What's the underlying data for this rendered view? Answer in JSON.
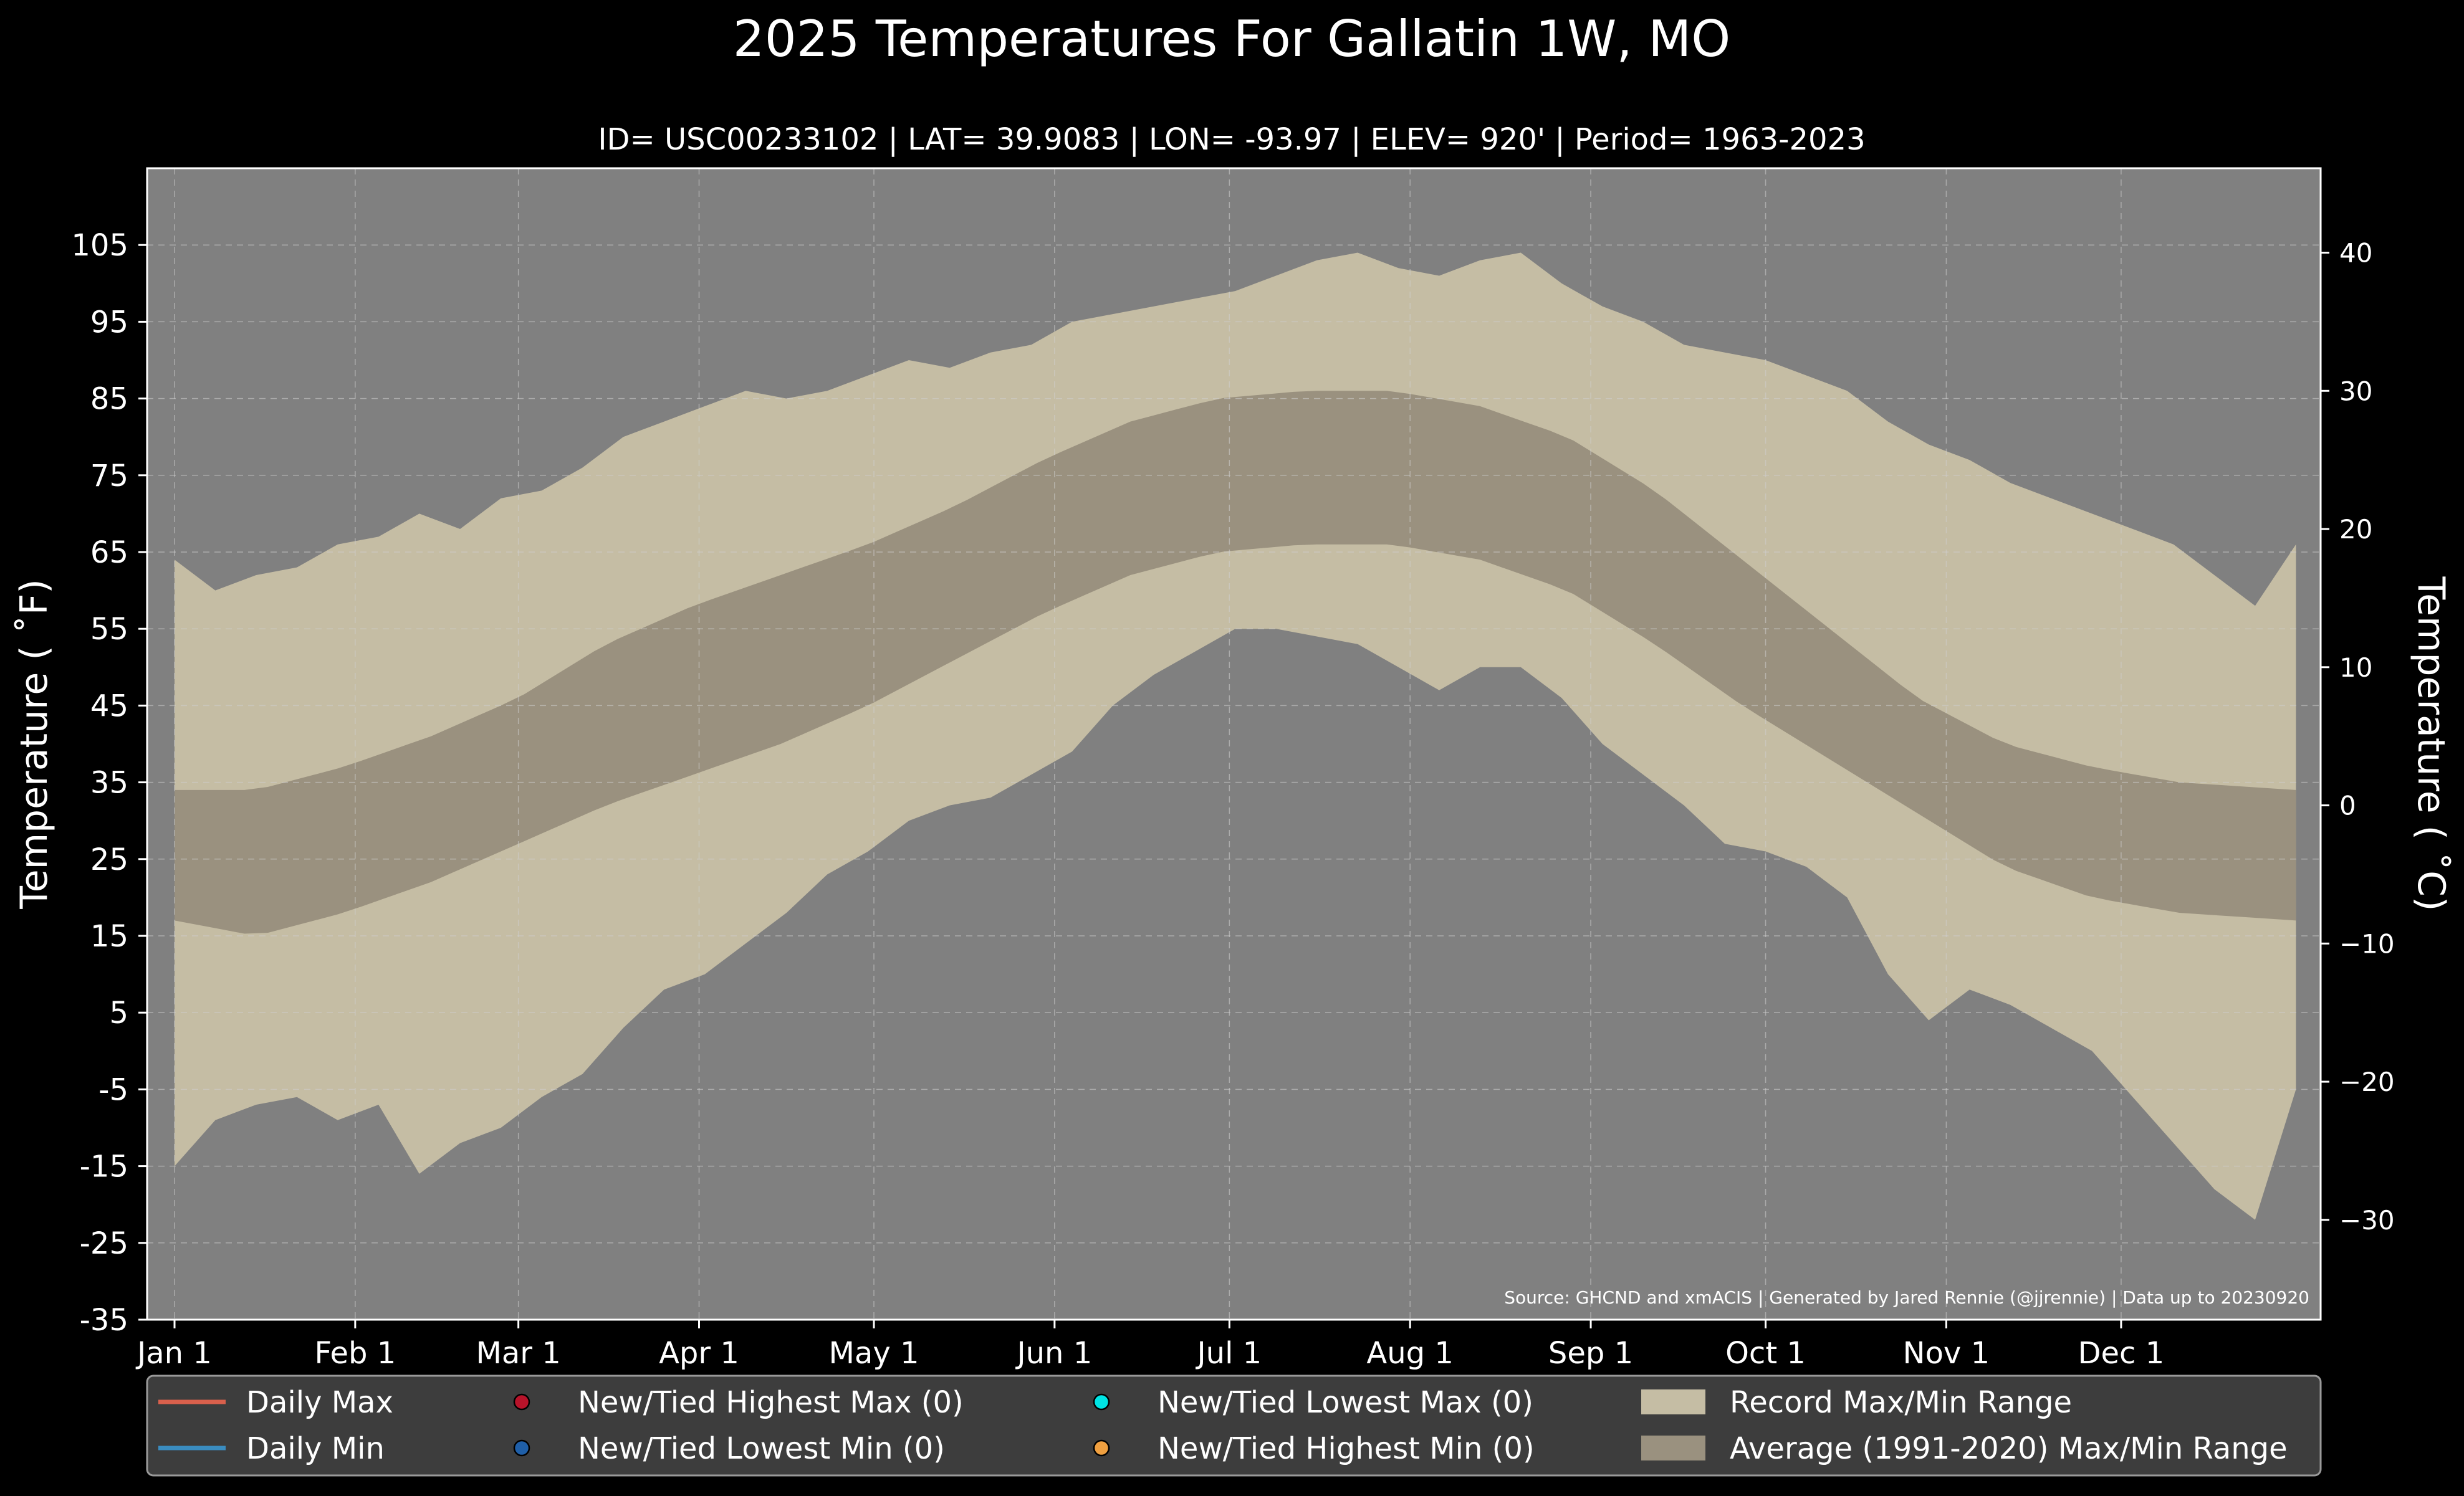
{
  "chart_data": {
    "type": "bar",
    "title": "2025 Temperatures For Gallatin 1W, MO",
    "subtitle": "ID= USC00233102 | LAT= 39.9083 | LON= -93.97 | ELEV= 920' | Period= 1963-2023",
    "ylabel": "Temperature ( $^\\circ$F)",
    "ylabel_display": "Temperature ( ˚F)",
    "ylabel_right_display": "Temperature ( ˚C)",
    "ylim": [
      -35,
      115
    ],
    "y_ticks": [
      "105",
      "95",
      "85",
      "75",
      "65",
      "55",
      "45",
      "35",
      "25",
      "15",
      "5",
      "-5",
      "-15",
      "-25",
      "-35"
    ],
    "y_ticks_right": [
      "40",
      "30",
      "20",
      "10",
      "0",
      "−10",
      "−20",
      "−30"
    ],
    "x_ticks": [
      "Jan 1",
      "Feb 1",
      "Mar 1",
      "Apr 1",
      "May 1",
      "Jun 1",
      "Jul 1",
      "Aug 1",
      "Sep 1",
      "Oct 1",
      "Nov 1",
      "Dec 1"
    ],
    "grid": true,
    "legend_position": "bottom",
    "source_note": "Source: GHCND and xmACIS | Generated by Jared Rennie (@jjrennie) | Data up to 20230920",
    "legend": [
      {
        "label": "Daily Max",
        "kind": "line",
        "color": "#d9604c"
      },
      {
        "label": "Daily Min",
        "kind": "line",
        "color": "#3a8cc0"
      },
      {
        "label": "New/Tied Highest Max (0)",
        "kind": "dot",
        "color": "#b8132a"
      },
      {
        "label": "New/Tied Lowest Min (0)",
        "kind": "dot",
        "color": "#1f5fa8"
      },
      {
        "label": "New/Tied Lowest Max (0)",
        "kind": "dot",
        "color": "#00e5e5"
      },
      {
        "label": "New/Tied Highest Min (0)",
        "kind": "dot",
        "color": "#f0a040"
      },
      {
        "label": "Record Max/Min Range",
        "kind": "patch",
        "color": "#c5bda4"
      },
      {
        "label": "Average (1991-2020) Max/Min Range",
        "kind": "patch",
        "color": "#9a917f"
      }
    ],
    "colors": {
      "record_range": "#c5bda4",
      "normal_range": "#9a917f",
      "plot_bg": "#808080",
      "figure_bg": "#000000"
    },
    "record_range": {
      "name": "Record Max/Min Range",
      "x_day_of_year": [
        1,
        8,
        15,
        22,
        29,
        36,
        43,
        50,
        57,
        64,
        71,
        78,
        85,
        92,
        99,
        106,
        113,
        120,
        127,
        134,
        141,
        148,
        155,
        162,
        169,
        176,
        183,
        190,
        197,
        204,
        211,
        218,
        225,
        232,
        239,
        246,
        253,
        260,
        267,
        274,
        281,
        288,
        295,
        302,
        309,
        316,
        323,
        330,
        337,
        344,
        351,
        358,
        365
      ],
      "max": [
        64,
        60,
        62,
        63,
        66,
        67,
        70,
        68,
        72,
        73,
        76,
        80,
        82,
        84,
        86,
        85,
        86,
        88,
        90,
        89,
        91,
        92,
        95,
        96,
        97,
        98,
        99,
        101,
        103,
        104,
        102,
        101,
        103,
        104,
        100,
        97,
        95,
        92,
        91,
        90,
        88,
        86,
        82,
        79,
        77,
        74,
        72,
        70,
        68,
        66,
        62,
        58,
        66
      ],
      "min": [
        -15,
        -9,
        -7,
        -6,
        -9,
        -7,
        -16,
        -12,
        -10,
        -6,
        -3,
        3,
        8,
        10,
        14,
        18,
        23,
        26,
        30,
        32,
        33,
        36,
        39,
        45,
        49,
        52,
        55,
        55,
        54,
        53,
        50,
        47,
        50,
        50,
        46,
        40,
        36,
        32,
        27,
        26,
        24,
        20,
        10,
        4,
        8,
        6,
        3,
        0,
        -6,
        -12,
        -18,
        -22,
        -5
      ]
    },
    "normal_range": {
      "name": "Average (1991-2020) Max/Min Range",
      "x_day_of_year": [
        1,
        15,
        30,
        45,
        60,
        75,
        90,
        105,
        120,
        135,
        150,
        165,
        180,
        195,
        210,
        225,
        240,
        255,
        270,
        285,
        300,
        315,
        330,
        345,
        365
      ],
      "max": [
        34,
        34,
        37,
        41,
        46,
        53,
        58,
        62,
        66,
        71,
        77,
        82,
        85,
        86,
        86,
        84,
        80,
        73,
        64,
        55,
        46,
        40,
        37,
        35,
        34
      ],
      "min": [
        17,
        15,
        18,
        22,
        27,
        32,
        36,
        40,
        45,
        51,
        57,
        62,
        65,
        66,
        66,
        64,
        60,
        53,
        45,
        38,
        31,
        24,
        20,
        18,
        17
      ]
    }
  }
}
